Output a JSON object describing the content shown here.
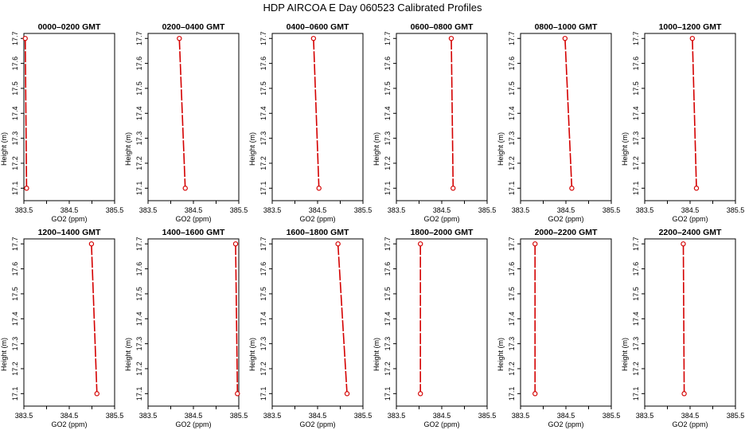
{
  "page_title": "HDP  AIRCOA E  Day 060523  Calibrated Profiles",
  "chart_data": [
    {
      "type": "line",
      "title": "0000–0200 GMT",
      "xlabel": "GO2 (ppm)",
      "ylabel": "Height (m)",
      "xlim": [
        383.5,
        385.5
      ],
      "ylim": [
        17.05,
        17.72
      ],
      "xticks": [
        "383.5",
        "384.5",
        "385.5"
      ],
      "yticks": [
        "17.1",
        "17.2",
        "17.3",
        "17.4",
        "17.5",
        "17.6",
        "17.7"
      ],
      "x": [
        383.53,
        383.56
      ],
      "y": [
        17.7,
        17.1
      ],
      "color": "#d40000"
    },
    {
      "type": "line",
      "title": "0200–0400 GMT",
      "xlabel": "GO2 (ppm)",
      "ylabel": "Height (m)",
      "xlim": [
        383.5,
        385.5
      ],
      "ylim": [
        17.05,
        17.72
      ],
      "xticks": [
        "383.5",
        "384.5",
        "385.5"
      ],
      "yticks": [
        "17.1",
        "17.2",
        "17.3",
        "17.4",
        "17.5",
        "17.6",
        "17.7"
      ],
      "x": [
        384.19,
        384.32
      ],
      "y": [
        17.7,
        17.1
      ],
      "color": "#d40000"
    },
    {
      "type": "line",
      "title": "0400–0600 GMT",
      "xlabel": "GO2 (ppm)",
      "ylabel": "Height (m)",
      "xlim": [
        383.5,
        385.5
      ],
      "ylim": [
        17.05,
        17.72
      ],
      "xticks": [
        "383.5",
        "384.5",
        "385.5"
      ],
      "yticks": [
        "17.1",
        "17.2",
        "17.3",
        "17.4",
        "17.5",
        "17.6",
        "17.7"
      ],
      "x": [
        384.41,
        384.53
      ],
      "y": [
        17.7,
        17.1
      ],
      "color": "#d40000"
    },
    {
      "type": "line",
      "title": "0600–0800 GMT",
      "xlabel": "GO2 (ppm)",
      "ylabel": "Height (m)",
      "xlim": [
        383.5,
        385.5
      ],
      "ylim": [
        17.05,
        17.72
      ],
      "xticks": [
        "383.5",
        "384.5",
        "385.5"
      ],
      "yticks": [
        "17.1",
        "17.2",
        "17.3",
        "17.4",
        "17.5",
        "17.6",
        "17.7"
      ],
      "x": [
        384.71,
        384.75
      ],
      "y": [
        17.7,
        17.1
      ],
      "color": "#d40000"
    },
    {
      "type": "line",
      "title": "0800–1000 GMT",
      "xlabel": "GO2 (ppm)",
      "ylabel": "Height (m)",
      "xlim": [
        383.5,
        385.5
      ],
      "ylim": [
        17.05,
        17.72
      ],
      "xticks": [
        "383.5",
        "384.5",
        "385.5"
      ],
      "yticks": [
        "17.1",
        "17.2",
        "17.3",
        "17.4",
        "17.5",
        "17.6",
        "17.7"
      ],
      "x": [
        384.48,
        384.63
      ],
      "y": [
        17.7,
        17.1
      ],
      "color": "#d40000"
    },
    {
      "type": "line",
      "title": "1000–1200 GMT",
      "xlabel": "GO2 (ppm)",
      "ylabel": "Height (m)",
      "xlim": [
        383.5,
        385.5
      ],
      "ylim": [
        17.05,
        17.72
      ],
      "xticks": [
        "383.5",
        "384.5",
        "385.5"
      ],
      "yticks": [
        "17.1",
        "17.2",
        "17.3",
        "17.4",
        "17.5",
        "17.6",
        "17.7"
      ],
      "x": [
        384.55,
        384.64
      ],
      "y": [
        17.7,
        17.1
      ],
      "color": "#d40000"
    },
    {
      "type": "line",
      "title": "1200–1400 GMT",
      "xlabel": "GO2 (ppm)",
      "ylabel": "Height (m)",
      "xlim": [
        383.5,
        385.5
      ],
      "ylim": [
        17.05,
        17.72
      ],
      "xticks": [
        "383.5",
        "384.5",
        "385.5"
      ],
      "yticks": [
        "17.1",
        "17.2",
        "17.3",
        "17.4",
        "17.5",
        "17.6",
        "17.7"
      ],
      "x": [
        384.99,
        385.11
      ],
      "y": [
        17.7,
        17.1
      ],
      "color": "#d40000"
    },
    {
      "type": "line",
      "title": "1400–1600 GMT",
      "xlabel": "GO2 (ppm)",
      "ylabel": "Height (m)",
      "xlim": [
        383.5,
        385.5
      ],
      "ylim": [
        17.05,
        17.72
      ],
      "xticks": [
        "383.5",
        "384.5",
        "385.5"
      ],
      "yticks": [
        "17.1",
        "17.2",
        "17.3",
        "17.4",
        "17.5",
        "17.6",
        "17.7"
      ],
      "x": [
        385.43,
        385.47
      ],
      "y": [
        17.7,
        17.1
      ],
      "color": "#d40000"
    },
    {
      "type": "line",
      "title": "1600–1800 GMT",
      "xlabel": "GO2 (ppm)",
      "ylabel": "Height (m)",
      "xlim": [
        383.5,
        385.5
      ],
      "ylim": [
        17.05,
        17.72
      ],
      "xticks": [
        "383.5",
        "384.5",
        "385.5"
      ],
      "yticks": [
        "17.1",
        "17.2",
        "17.3",
        "17.4",
        "17.5",
        "17.6",
        "17.7"
      ],
      "x": [
        384.95,
        385.15
      ],
      "y": [
        17.7,
        17.1
      ],
      "color": "#d40000"
    },
    {
      "type": "line",
      "title": "1800–2000 GMT",
      "xlabel": "GO2 (ppm)",
      "ylabel": "Height (m)",
      "xlim": [
        383.5,
        385.5
      ],
      "ylim": [
        17.05,
        17.72
      ],
      "xticks": [
        "383.5",
        "384.5",
        "385.5"
      ],
      "yticks": [
        "17.1",
        "17.2",
        "17.3",
        "17.4",
        "17.5",
        "17.6",
        "17.7"
      ],
      "x": [
        384.03,
        384.03
      ],
      "y": [
        17.7,
        17.1
      ],
      "color": "#d40000"
    },
    {
      "type": "line",
      "title": "2000–2200 GMT",
      "xlabel": "GO2 (ppm)",
      "ylabel": "Height (m)",
      "xlim": [
        383.5,
        385.5
      ],
      "ylim": [
        17.05,
        17.72
      ],
      "xticks": [
        "383.5",
        "384.5",
        "385.5"
      ],
      "yticks": [
        "17.1",
        "17.2",
        "17.3",
        "17.4",
        "17.5",
        "17.6",
        "17.7"
      ],
      "x": [
        383.82,
        383.82
      ],
      "y": [
        17.7,
        17.1
      ],
      "color": "#d40000"
    },
    {
      "type": "line",
      "title": "2200–2400 GMT",
      "xlabel": "GO2 (ppm)",
      "ylabel": "Height (m)",
      "xlim": [
        383.5,
        385.5
      ],
      "ylim": [
        17.05,
        17.72
      ],
      "xticks": [
        "383.5",
        "384.5",
        "385.5"
      ],
      "yticks": [
        "17.1",
        "17.2",
        "17.3",
        "17.4",
        "17.5",
        "17.6",
        "17.7"
      ],
      "x": [
        384.35,
        384.37
      ],
      "y": [
        17.7,
        17.1
      ],
      "color": "#d40000"
    }
  ]
}
